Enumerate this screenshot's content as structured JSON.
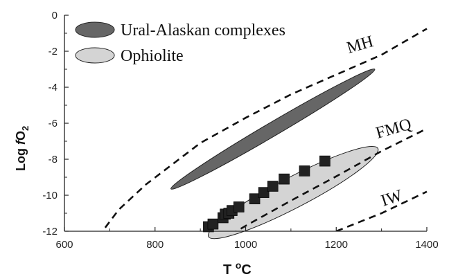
{
  "chart_data": {
    "type": "scatter",
    "title": "",
    "xlabel": {
      "main": "T ",
      "sup": "o",
      "tail": "C"
    },
    "ylabel": {
      "pre": "Log ",
      "italic": "f",
      "main": "O",
      "sub": "2"
    },
    "xlim": [
      600,
      1400
    ],
    "ylim": [
      -12,
      0
    ],
    "xticks": [
      600,
      800,
      1000,
      1200,
      1400
    ],
    "yticks": [
      0,
      -2,
      -4,
      -6,
      -8,
      -10,
      -12
    ],
    "grid": false,
    "legend_position": "top-left",
    "legend": [
      {
        "label": "Ural-Alaskan complexes",
        "color": "#666666"
      },
      {
        "label": "Ophiolite",
        "color": "#d4d4d4"
      }
    ],
    "buffers": [
      {
        "name": "MH",
        "points": [
          [
            690,
            -11.8
          ],
          [
            720,
            -10.8
          ],
          [
            780,
            -9.4
          ],
          [
            900,
            -7.1
          ],
          [
            1000,
            -5.7
          ],
          [
            1100,
            -4.4
          ],
          [
            1200,
            -3.3
          ],
          [
            1300,
            -2.2
          ],
          [
            1400,
            -0.75
          ]
        ]
      },
      {
        "name": "FMQ",
        "points": [
          [
            900,
            -13.2
          ],
          [
            1000,
            -11.7
          ],
          [
            1100,
            -10.3
          ],
          [
            1200,
            -8.95
          ],
          [
            1300,
            -7.55
          ],
          [
            1400,
            -6.3
          ]
        ]
      },
      {
        "name": "IW",
        "points": [
          [
            1200,
            -12.0
          ],
          [
            1300,
            -11.0
          ],
          [
            1400,
            -9.8
          ]
        ]
      }
    ],
    "regions": [
      {
        "name": "Ural-Alaskan complexes",
        "color": "#666666",
        "points": [
          [
            835,
            -9.65
          ],
          [
            1285,
            -3.0
          ]
        ],
        "half_width": -0.38
      },
      {
        "name": "Ophiolite",
        "color": "#d4d4d4",
        "points": [
          [
            918,
            -12.3
          ],
          [
            1292,
            -7.4
          ]
        ],
        "half_width": -0.85
      }
    ],
    "series": [
      {
        "marker": "square",
        "color": "#222222",
        "x": [
          918,
          928,
          950,
          955,
          963,
          970,
          985,
          1020,
          1040,
          1060,
          1085,
          1130,
          1175
        ],
        "y": [
          -11.75,
          -11.6,
          -11.25,
          -11.05,
          -11.0,
          -10.85,
          -10.65,
          -10.2,
          -9.85,
          -9.5,
          -9.1,
          -8.65,
          -8.1
        ]
      }
    ]
  }
}
